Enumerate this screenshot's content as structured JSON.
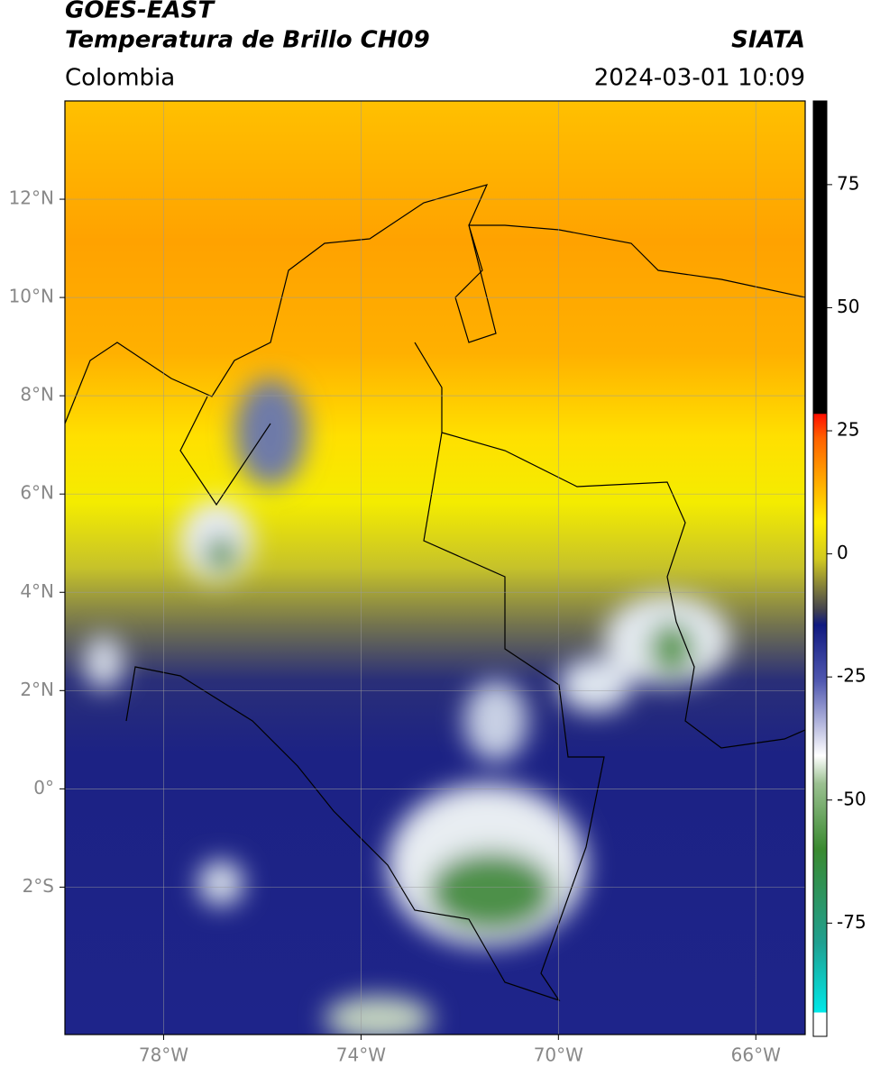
{
  "header": {
    "title": "GOES-EAST",
    "subtitle": "Temperatura de Brillo CH09",
    "source": "SIATA",
    "region": "Colombia",
    "datetime": "2024-03-01 10:09"
  },
  "map": {
    "xlim": [
      -80,
      -65
    ],
    "ylim": [
      -5,
      14
    ],
    "xticks": [
      {
        "value": -78,
        "label": "78°W"
      },
      {
        "value": -74,
        "label": "74°W"
      },
      {
        "value": -70,
        "label": "70°W"
      },
      {
        "value": -66,
        "label": "66°W"
      }
    ],
    "yticks": [
      {
        "value": 12,
        "label": "12°N"
      },
      {
        "value": 10,
        "label": "10°N"
      },
      {
        "value": 8,
        "label": "8°N"
      },
      {
        "value": 6,
        "label": "6°N"
      },
      {
        "value": 4,
        "label": "4°N"
      },
      {
        "value": 2,
        "label": "2°N"
      },
      {
        "value": 0,
        "label": "0°"
      },
      {
        "value": -2,
        "label": "2°S"
      }
    ]
  },
  "colorbar": {
    "lim": [
      -98,
      92
    ],
    "ticks": [
      75,
      50,
      25,
      0,
      -25,
      -50,
      -75
    ]
  }
}
